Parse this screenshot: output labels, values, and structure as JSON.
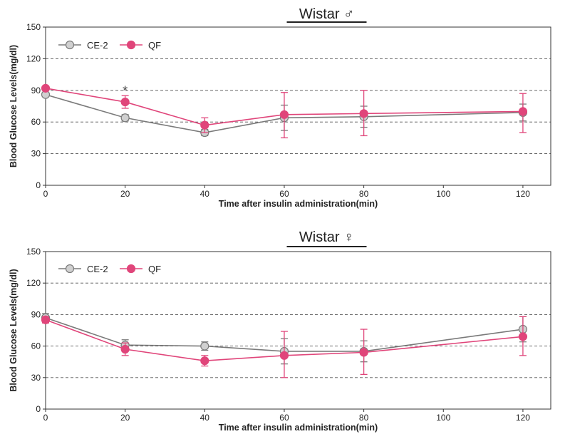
{
  "chart_data": [
    {
      "type": "line",
      "title": "Wistar ♂",
      "xlabel": "Time after insulin administration(min)",
      "ylabel": "Blood Glucose Levels(mg/dl)",
      "xlim": [
        0,
        127
      ],
      "ylim": [
        0,
        150
      ],
      "xticks": [
        0,
        20,
        40,
        60,
        80,
        100,
        120
      ],
      "yticks": [
        0,
        30,
        60,
        90,
        120,
        150
      ],
      "grid": "horizontal dashed",
      "legend": "top-left",
      "x": [
        0,
        20,
        40,
        60,
        80,
        120
      ],
      "series": [
        {
          "name": "CE-2",
          "color": "#7a7a7a",
          "marker_fill": "#d0d0d0",
          "values": [
            86,
            64,
            50,
            64,
            65,
            69
          ],
          "err_low": [
            0,
            3,
            3,
            12,
            10,
            8
          ],
          "err_high": [
            0,
            3,
            3,
            12,
            10,
            8
          ]
        },
        {
          "name": "QF",
          "color": "#e0457a",
          "marker_fill": "#e0457a",
          "values": [
            92,
            79,
            57,
            67,
            68,
            70
          ],
          "err_low": [
            0,
            6,
            7,
            22,
            21,
            20
          ],
          "err_high": [
            0,
            6,
            7,
            21,
            22,
            17
          ]
        }
      ],
      "annotations": [
        {
          "text": "*",
          "x": 20,
          "y": 91
        }
      ]
    },
    {
      "type": "line",
      "title": "Wistar ♀",
      "xlabel": "Time after insulin administration(min)",
      "ylabel": "Blood Glucose Levels(mg/dl)",
      "xlim": [
        0,
        127
      ],
      "ylim": [
        0,
        150
      ],
      "xticks": [
        0,
        20,
        40,
        60,
        80,
        100,
        120
      ],
      "yticks": [
        0,
        30,
        60,
        90,
        120,
        150
      ],
      "grid": "horizontal dashed",
      "legend": "top-left",
      "x": [
        0,
        20,
        40,
        60,
        80,
        120
      ],
      "series": [
        {
          "name": "CE-2",
          "color": "#7a7a7a",
          "marker_fill": "#d0d0d0",
          "values": [
            87,
            61,
            60,
            55,
            55,
            76
          ],
          "err_low": [
            4,
            5,
            4,
            12,
            10,
            12
          ],
          "err_high": [
            4,
            5,
            4,
            12,
            10,
            12
          ]
        },
        {
          "name": "QF",
          "color": "#e0457a",
          "marker_fill": "#e0457a",
          "values": [
            85,
            57,
            46,
            51,
            54,
            69
          ],
          "err_low": [
            3,
            6,
            5,
            21,
            21,
            18
          ],
          "err_high": [
            3,
            6,
            5,
            23,
            22,
            19
          ]
        }
      ],
      "annotations": []
    }
  ]
}
